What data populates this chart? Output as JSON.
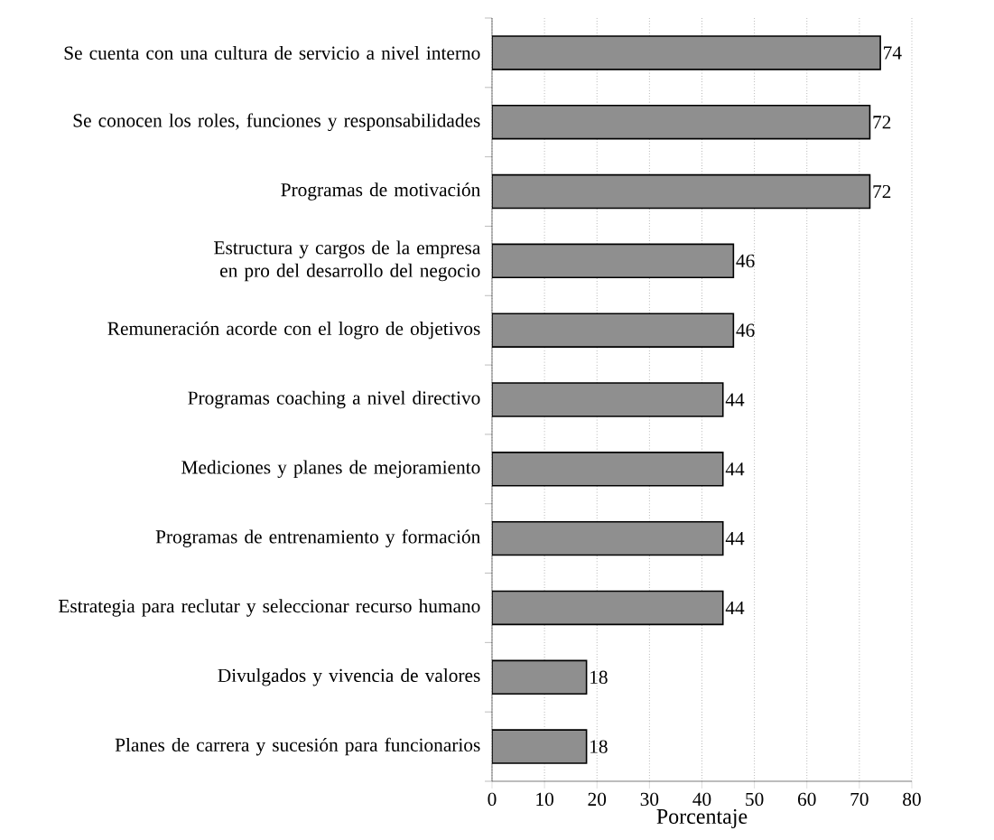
{
  "chart_data": {
    "type": "bar",
    "orientation": "horizontal",
    "xlabel": "Porcentaje",
    "categories": [
      "Se cuenta con una cultura de servicio a nivel interno",
      "Se conocen los roles, funciones y responsabilidades",
      "Programas de motivación",
      "Estructura y cargos de la empresa en pro del desarrollo del negocio",
      "Remuneración acorde con el logro de objetivos",
      "Programas coaching a nivel directivo",
      "Mediciones y planes de mejoramiento",
      "Programas de entrenamiento y formación",
      "Estrategia para reclutar y seleccionar recurso humano",
      "Divulgados y vivencia de valores",
      "Planes de carrera y sucesión para funcionarios"
    ],
    "values": [
      74,
      72,
      72,
      46,
      46,
      44,
      44,
      44,
      44,
      18,
      18
    ],
    "color": "#8f8f8f",
    "data_labels": true,
    "grid": "x",
    "xlim": [
      0,
      80
    ],
    "xticks": [
      0,
      10,
      20,
      30,
      40,
      50,
      60,
      70,
      80
    ]
  }
}
